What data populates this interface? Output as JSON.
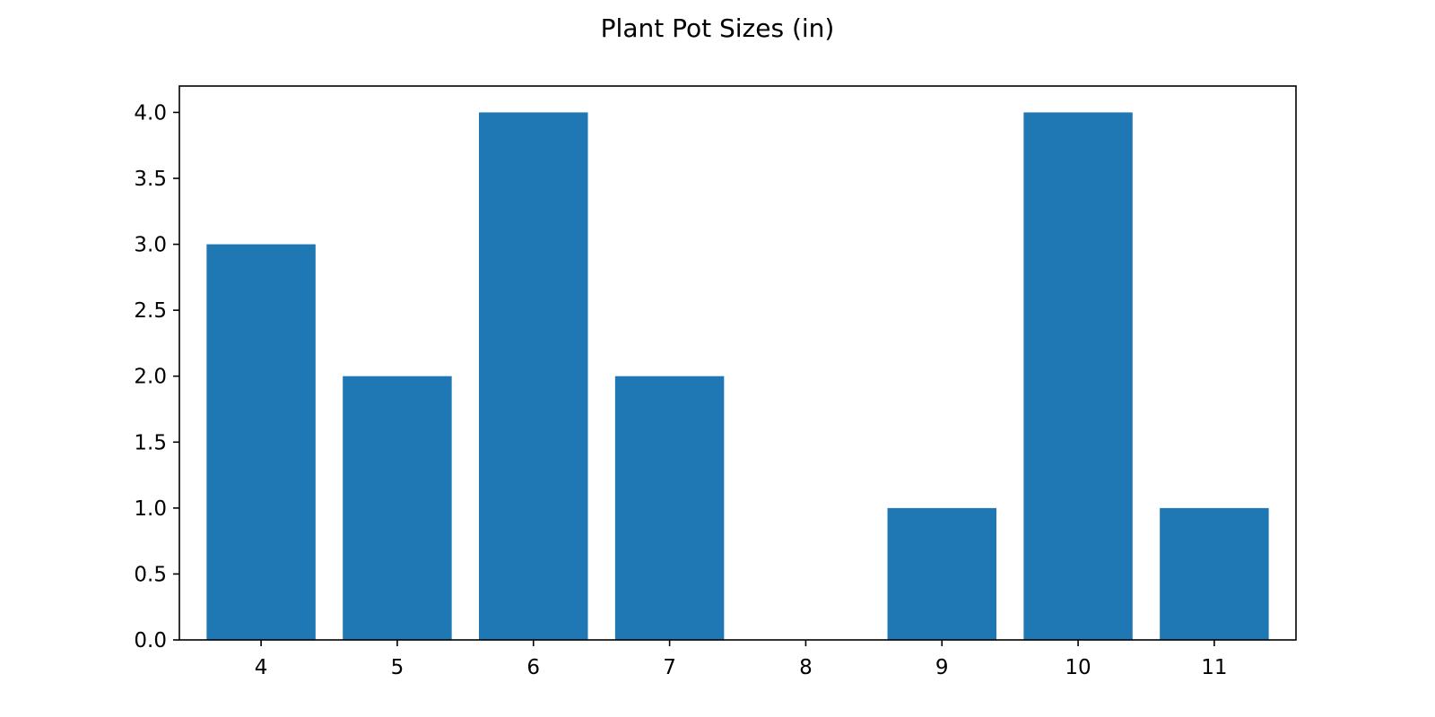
{
  "chart_data": {
    "type": "bar",
    "title": "Plant Pot Sizes (in)",
    "xlabel": "",
    "ylabel": "",
    "categories": [
      4,
      5,
      6,
      7,
      8,
      9,
      10,
      11
    ],
    "values": [
      3,
      2,
      4,
      2,
      0,
      1,
      4,
      1
    ],
    "ylim": [
      0,
      4.2
    ],
    "yticks": [
      "0.0",
      "0.5",
      "1.0",
      "1.5",
      "2.0",
      "2.5",
      "3.0",
      "3.5",
      "4.0"
    ],
    "grid": false,
    "legend": "none",
    "bar_color": "#1f77b4"
  }
}
